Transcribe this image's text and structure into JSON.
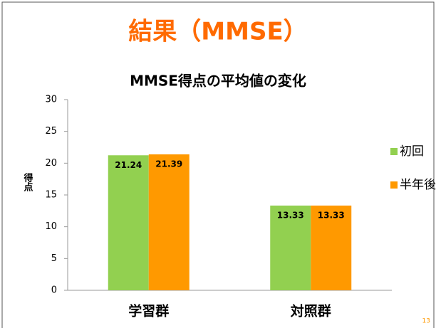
{
  "slide_title": "結果（MMSE）",
  "page_number": "13",
  "chart_data": {
    "type": "bar",
    "title": "MMSE得点の平均値の変化",
    "ylabel": "得点",
    "categories": [
      "学習群",
      "対照群"
    ],
    "series": [
      {
        "name": "初回",
        "color": "#92d050",
        "values": [
          21.24,
          13.33
        ]
      },
      {
        "name": "半年後",
        "color": "#ff9900",
        "values": [
          21.39,
          13.33
        ]
      }
    ],
    "ylim": [
      0,
      30
    ],
    "yticks": [
      0,
      5,
      10,
      15,
      20,
      25,
      30
    ],
    "legend": "right"
  }
}
